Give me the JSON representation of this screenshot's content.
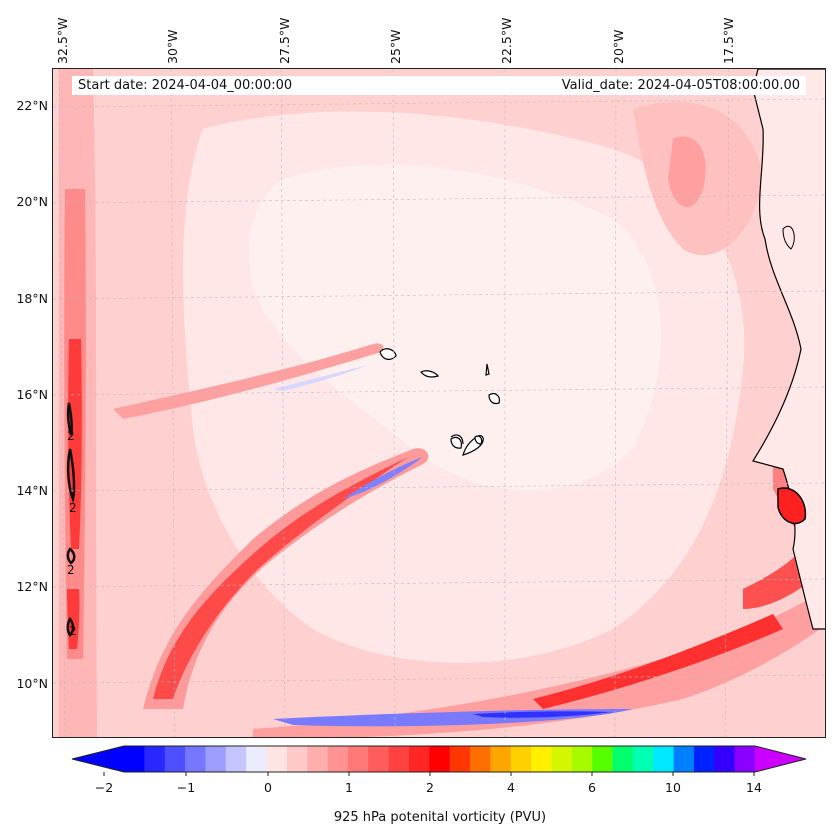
{
  "header": {
    "start_date": "Start date: 2024-04-04_00:00:00",
    "valid_date": "Valid_date: 2024-04-05T08:00:00.00"
  },
  "lon_labels": [
    "32.5°W",
    "30°W",
    "27.5°W",
    "25°W",
    "22.5°W",
    "20°W",
    "17.5°W"
  ],
  "lat_labels": [
    "22°N",
    "20°N",
    "18°N",
    "16°N",
    "14°N",
    "12°N",
    "10°N"
  ],
  "contour_labels": [
    "2",
    "2",
    "2",
    "2"
  ],
  "colorbar": {
    "label": "925 hPa potenital vorticity (PVU)",
    "ticks": [
      "−2",
      "−1",
      "0",
      "1",
      "2",
      "4",
      "6",
      "10",
      "14"
    ],
    "colors": [
      "#0000ff",
      "#2727ff",
      "#4f4fff",
      "#7676ff",
      "#9e9eff",
      "#c5c5ff",
      "#ececff",
      "#ffe4e4",
      "#ffc9c9",
      "#ffaeae",
      "#ff9393",
      "#ff7878",
      "#ff5c5c",
      "#ff4141",
      "#ff2626",
      "#ff0000",
      "#ff3700",
      "#ff6e00",
      "#ffa500",
      "#ffd000",
      "#fff000",
      "#d4f700",
      "#a8fa00",
      "#56ff00",
      "#00ff6a",
      "#00ffb0",
      "#00e8ff",
      "#0080ff",
      "#0022ff",
      "#3300ff",
      "#8a00ff"
    ],
    "extend_min_color": "#0000ff",
    "extend_max_color": "#cc00ff"
  },
  "map": {
    "ocean_base": "#ffe6e6",
    "land_outline": "#000000"
  }
}
